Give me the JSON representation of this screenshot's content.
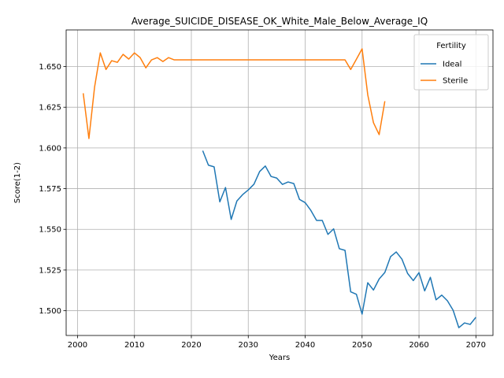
{
  "chart_data": {
    "type": "line",
    "title": "Average_SUICIDE_DISEASE_OK_White_Male_Below_Average_IQ",
    "xlabel": "Years",
    "ylabel": "Score(1-2)",
    "xlim": [
      1998,
      2073
    ],
    "ylim": [
      1.4848,
      1.6725
    ],
    "xticks": [
      2000,
      2010,
      2020,
      2030,
      2040,
      2050,
      2060,
      2070
    ],
    "yticks": [
      1.5,
      1.525,
      1.55,
      1.575,
      1.6,
      1.625,
      1.65
    ],
    "ytick_labels": [
      "1.500",
      "1.525",
      "1.550",
      "1.575",
      "1.600",
      "1.625",
      "1.650"
    ],
    "grid": true,
    "legend": {
      "title": "Fertility",
      "position": "top-right"
    },
    "series": [
      {
        "name": "Ideal",
        "color": "#1f77b4",
        "x": [
          2022,
          2023,
          2024,
          2025,
          2026,
          2027,
          2028,
          2029,
          2030,
          2031,
          2032,
          2033,
          2034,
          2035,
          2036,
          2037,
          2038,
          2039,
          2040,
          2041,
          2042,
          2043,
          2044,
          2045,
          2046,
          2047,
          2048,
          2049,
          2050,
          2051,
          2052,
          2053,
          2054,
          2055,
          2056,
          2057,
          2058,
          2059,
          2060,
          2061,
          2062,
          2063,
          2064,
          2065,
          2066,
          2067,
          2068,
          2069,
          2070
        ],
        "y": [
          1.5983,
          1.5894,
          1.5884,
          1.5669,
          1.5757,
          1.5561,
          1.5674,
          1.5713,
          1.5742,
          1.5777,
          1.5855,
          1.5889,
          1.5825,
          1.5815,
          1.5776,
          1.5791,
          1.5781,
          1.5684,
          1.5664,
          1.5616,
          1.5555,
          1.5555,
          1.5469,
          1.5503,
          1.5381,
          1.5371,
          1.5116,
          1.5101,
          1.4979,
          1.5172,
          1.5127,
          1.5195,
          1.5235,
          1.5332,
          1.5361,
          1.5317,
          1.5229,
          1.5185,
          1.5234,
          1.5122,
          1.5205,
          1.5067,
          1.5096,
          1.5061,
          1.5003,
          1.4896,
          1.4925,
          1.4916,
          1.496
        ]
      },
      {
        "name": "Sterile",
        "color": "#ff7f0e",
        "x": [
          2001,
          2002,
          2003,
          2004,
          2005,
          2006,
          2007,
          2008,
          2009,
          2010,
          2011,
          2012,
          2013,
          2014,
          2015,
          2016,
          2017,
          2018,
          2019,
          2020,
          2021,
          2022,
          2023,
          2024,
          2025,
          2026,
          2027,
          2028,
          2029,
          2030,
          2031,
          2032,
          2033,
          2034,
          2035,
          2036,
          2037,
          2038,
          2039,
          2040,
          2041,
          2042,
          2043,
          2044,
          2045,
          2046,
          2047,
          2048,
          2049,
          2050,
          2051,
          2052,
          2053,
          2054
        ],
        "y": [
          1.6336,
          1.6058,
          1.6375,
          1.6584,
          1.6482,
          1.6536,
          1.6526,
          1.6575,
          1.6546,
          1.6584,
          1.6555,
          1.6492,
          1.6541,
          1.6555,
          1.6531,
          1.6555,
          1.6541,
          1.6541,
          1.6541,
          1.6541,
          1.6541,
          1.6541,
          1.6541,
          1.6541,
          1.6541,
          1.6541,
          1.6541,
          1.6541,
          1.6541,
          1.6541,
          1.6541,
          1.6541,
          1.6541,
          1.6541,
          1.6541,
          1.6541,
          1.6541,
          1.6541,
          1.6541,
          1.6541,
          1.6541,
          1.6541,
          1.6541,
          1.6541,
          1.6541,
          1.6541,
          1.6541,
          1.6482,
          1.6545,
          1.6609,
          1.6326,
          1.6155,
          1.6082,
          1.6287
        ]
      }
    ]
  }
}
